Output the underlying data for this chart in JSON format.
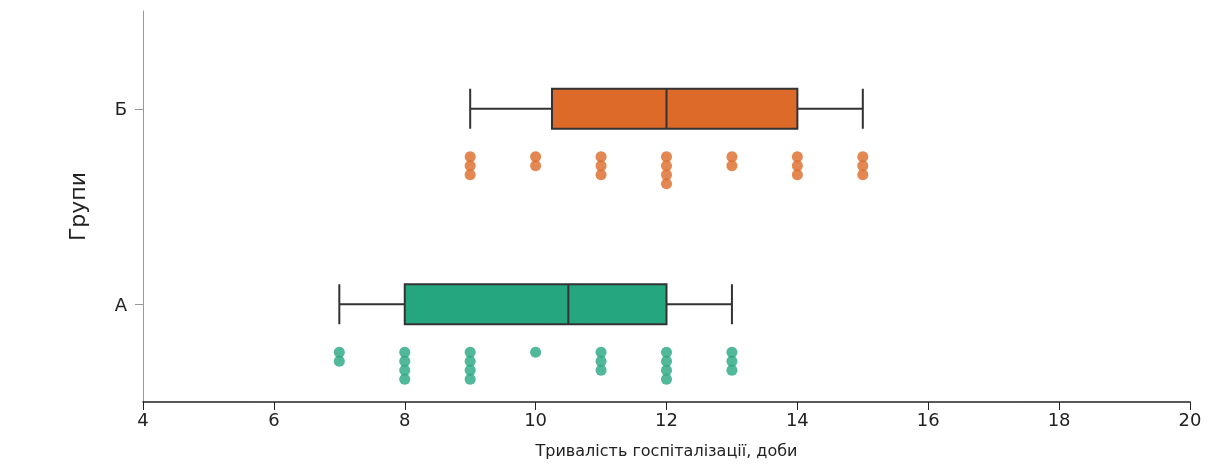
{
  "chart_data": {
    "type": "box",
    "orientation": "horizontal",
    "ylabel": "Групи",
    "xlabel": "Тривалість госпіталізації, доби",
    "categories": [
      "Б",
      "А"
    ],
    "xlim": [
      4,
      20
    ],
    "xticks": [
      4,
      6,
      8,
      10,
      12,
      14,
      16,
      18,
      20
    ],
    "grid": false,
    "series": [
      {
        "colors": [
          "#dd6a28",
          "#26a67f"
        ],
        "boxes": [
          {
            "low": 9,
            "q1": 10.25,
            "median": 12,
            "q3": 14,
            "high": 15
          },
          {
            "low": 7,
            "q1": 8,
            "median": 10.5,
            "q3": 12,
            "high": 13
          }
        ]
      },
      {
        "type": "scatter",
        "color": "#dd6a28",
        "x": [
          "Б",
          "Б",
          "Б",
          "Б",
          "Б",
          "Б",
          "Б",
          "Б",
          "Б",
          "Б",
          "Б",
          "Б",
          "Б",
          "Б",
          "Б",
          "Б",
          "Б",
          "Б",
          "Б",
          "Б"
        ],
        "values": [
          9,
          9,
          9,
          10,
          10,
          11,
          11,
          11,
          12,
          12,
          12,
          12,
          13,
          13,
          14,
          14,
          14,
          15,
          15,
          15
        ]
      },
      {
        "type": "scatter",
        "color": "#26a67f",
        "x": [
          "А",
          "А",
          "А",
          "А",
          "А",
          "А",
          "А",
          "А",
          "А",
          "А",
          "А",
          "А",
          "А",
          "А",
          "А",
          "А",
          "А",
          "А",
          "А",
          "А",
          "А"
        ],
        "values": [
          7,
          7,
          8,
          8,
          8,
          8,
          9,
          9,
          9,
          9,
          10,
          11,
          11,
          11,
          12,
          12,
          12,
          12,
          13,
          13,
          13
        ]
      }
    ]
  }
}
